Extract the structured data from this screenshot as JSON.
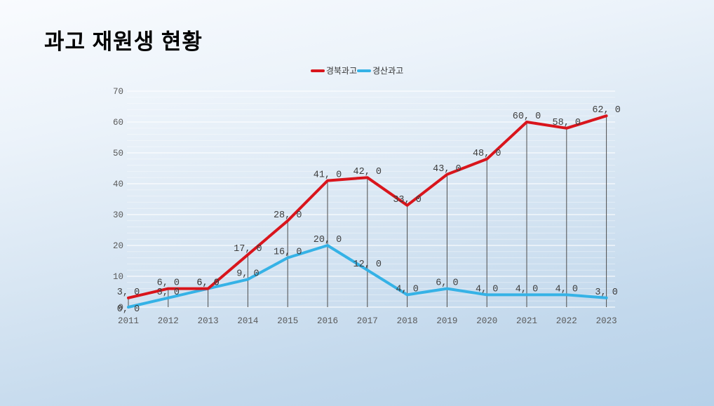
{
  "page": {
    "title": "과고 재원생 현황"
  },
  "legend": [
    {
      "label": "경북과고",
      "color": "#d9151c"
    },
    {
      "label": "경산과고",
      "color": "#35b2e6"
    }
  ],
  "colors": {
    "series_red": "#d9151c",
    "series_blue": "#35b2e6",
    "dropline": "#4d4d4d",
    "label_text": "#3d3d3d",
    "axis_text": "#595959",
    "background_top": "#f9fbfe",
    "background_bottom": "#b6d1e9"
  },
  "chart_data": {
    "type": "line",
    "title": "과고 재원생 현황",
    "xlabel": "",
    "ylabel": "",
    "x": [
      2011,
      2012,
      2013,
      2014,
      2015,
      2016,
      2017,
      2018,
      2019,
      2020,
      2021,
      2022,
      2023
    ],
    "series": [
      {
        "name": "경북과고",
        "color": "#d9151c",
        "values": [
          3,
          6,
          6,
          17,
          28,
          41,
          42,
          33,
          43,
          48,
          60,
          58,
          62
        ]
      },
      {
        "name": "경산과고",
        "color": "#35b2e6",
        "values": [
          0,
          3,
          6,
          9,
          16,
          20,
          12,
          4,
          6,
          4,
          4,
          4,
          3
        ]
      }
    ],
    "ylim": [
      0,
      70
    ],
    "yticks": [
      0,
      10,
      20,
      30,
      40,
      50,
      60,
      70
    ],
    "minor_grid_step": 2,
    "grid": true,
    "drop_lines": true,
    "data_labels": true,
    "label_suffix": ", 0",
    "legend_position": "top-center"
  }
}
